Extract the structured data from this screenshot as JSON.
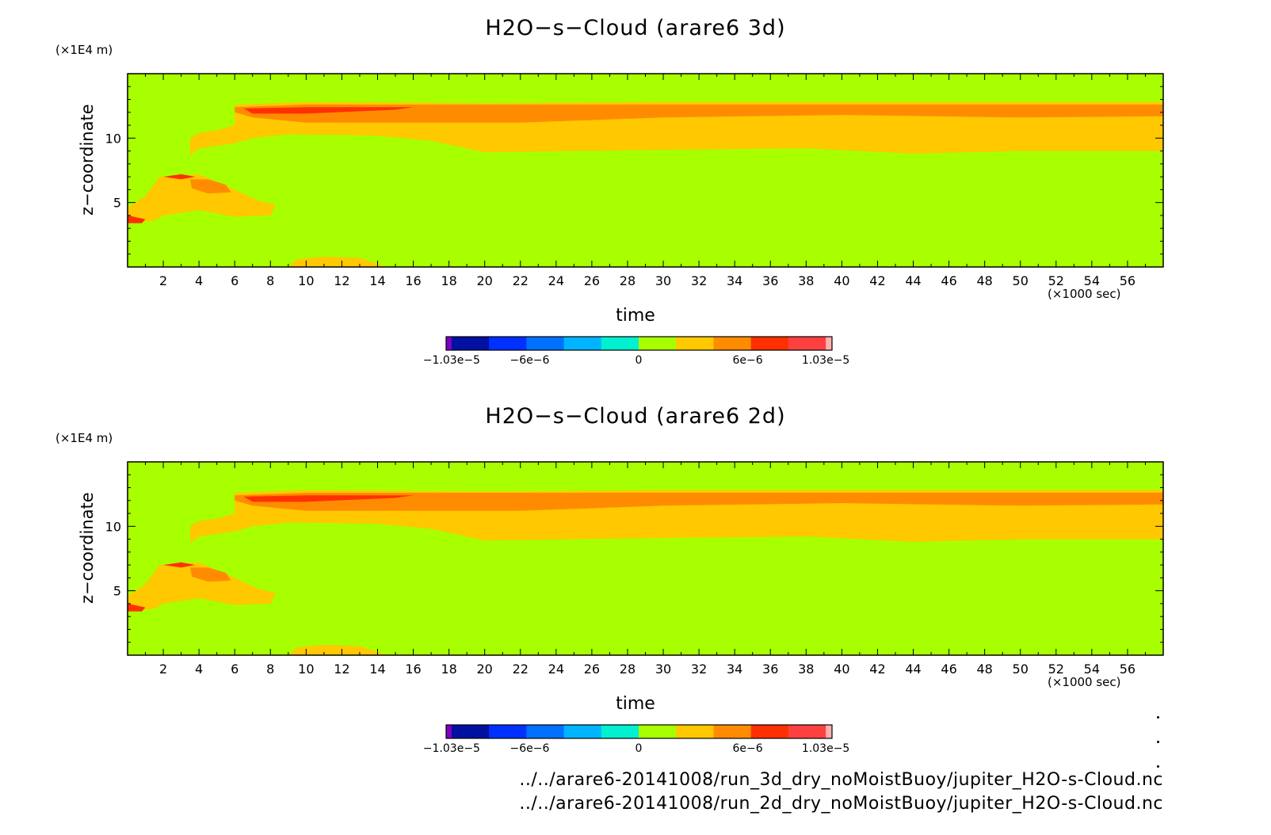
{
  "colors": {
    "background_level": "#a8ff00",
    "palette": [
      "#8000c0",
      "#0010a0",
      "#0030ff",
      "#0070ff",
      "#00b4ff",
      "#00f0d0",
      "#a8ff00",
      "#ffc800",
      "#ff8c00",
      "#ff3000",
      "#ff4040",
      "#ffb0b0"
    ]
  },
  "panels": [
    {
      "title": "H2O−s−Cloud (arare6 3d)",
      "xlabel": "time",
      "xunit": "(×1000 sec)",
      "ylabel": "z−coordinate",
      "yunit": "(×1E4 m)"
    },
    {
      "title": "H2O−s−Cloud (arare6 2d)",
      "xlabel": "time",
      "xunit": "(×1000 sec)",
      "ylabel": "z−coordinate",
      "yunit": "(×1E4 m)"
    }
  ],
  "footer": {
    "file_3d": "../../arare6-20141008/run_3d_dry_noMoistBuoy/jupiter_H2O-s-Cloud.nc",
    "file_2d": "../../arare6-20141008/run_2d_dry_noMoistBuoy/jupiter_H2O-s-Cloud.nc"
  },
  "chart_data": [
    {
      "type": "heatmap",
      "title": "H2O−s−Cloud (arare6 3d)",
      "xlabel": "time",
      "ylabel": "z−coordinate",
      "xlim": [
        0,
        58
      ],
      "ylim": [
        0,
        15
      ],
      "xticks": [
        2,
        4,
        6,
        8,
        10,
        12,
        14,
        16,
        18,
        20,
        22,
        24,
        26,
        28,
        30,
        32,
        34,
        36,
        38,
        40,
        42,
        44,
        46,
        48,
        50,
        52,
        54,
        56
      ],
      "yticks": [
        5,
        10
      ],
      "colorbar": {
        "tick_labels": [
          "−1.03e−5",
          "−6e−6",
          "0",
          "6e−6",
          "1.03e−5"
        ],
        "tick_values": [
          -1.03e-05,
          -6e-06,
          0,
          6e-06,
          1.03e-05
        ],
        "range": [
          -1.03e-05,
          1.03e-05
        ]
      },
      "regions": [
        {
          "level": "3.5e-6",
          "points": [
            [
              6,
              12.6
            ],
            [
              10,
              12.8
            ],
            [
              20,
              12.7
            ],
            [
              30,
              12.8
            ],
            [
              40,
              12.8
            ],
            [
              50,
              12.8
            ],
            [
              58,
              12.8
            ],
            [
              58,
              9
            ],
            [
              50,
              9
            ],
            [
              44,
              8.8
            ],
            [
              38,
              9.2
            ],
            [
              30,
              9.1
            ],
            [
              20,
              8.9
            ],
            [
              19,
              9.2
            ],
            [
              17,
              9.8
            ],
            [
              14,
              10.2
            ],
            [
              9,
              10.3
            ],
            [
              7,
              10
            ],
            [
              6,
              9.6
            ],
            [
              4,
              9.2
            ],
            [
              3.5,
              8.7
            ],
            [
              3.5,
              10
            ],
            [
              4,
              10.4
            ],
            [
              5,
              10.6
            ],
            [
              6,
              11
            ]
          ]
        },
        {
          "level": "5.5e-6",
          "points": [
            [
              6,
              12.4
            ],
            [
              10,
              12.6
            ],
            [
              20,
              12.6
            ],
            [
              30,
              12.6
            ],
            [
              40,
              12.6
            ],
            [
              50,
              12.6
            ],
            [
              58,
              12.6
            ],
            [
              58,
              11.7
            ],
            [
              50,
              11.6
            ],
            [
              40,
              11.8
            ],
            [
              30,
              11.6
            ],
            [
              22,
              11.2
            ],
            [
              16,
              11.2
            ],
            [
              10,
              11.2
            ],
            [
              7,
              11.6
            ],
            [
              6,
              12
            ]
          ]
        },
        {
          "level": "8.5e-6",
          "points": [
            [
              6.5,
              12.3
            ],
            [
              10,
              12.4
            ],
            [
              16,
              12.4
            ],
            [
              15,
              12.2
            ],
            [
              10,
              11.9
            ],
            [
              7,
              11.9
            ]
          ]
        },
        {
          "level": "3.5e-6",
          "points": [
            [
              0,
              4.6
            ],
            [
              1,
              5.5
            ],
            [
              1.8,
              7
            ],
            [
              4,
              7.2
            ],
            [
              6,
              6
            ],
            [
              7.2,
              5.2
            ],
            [
              8.3,
              4.8
            ],
            [
              8,
              4
            ],
            [
              6,
              3.9
            ],
            [
              4,
              4.4
            ],
            [
              2,
              4
            ],
            [
              1.5,
              3.6
            ],
            [
              0,
              3.4
            ]
          ]
        },
        {
          "level": "5.5e-6",
          "points": [
            [
              3.5,
              6.8
            ],
            [
              4.5,
              6.8
            ],
            [
              5.5,
              6.4
            ],
            [
              5.8,
              5.8
            ],
            [
              4.5,
              5.7
            ],
            [
              3.6,
              6.1
            ]
          ]
        },
        {
          "level": "8.5e-6",
          "points": [
            [
              2,
              7
            ],
            [
              3,
              7.2
            ],
            [
              3.8,
              7
            ],
            [
              3,
              6.8
            ]
          ]
        },
        {
          "level": "8.5e-6",
          "points": [
            [
              0,
              4
            ],
            [
              1,
              3.7
            ],
            [
              0.8,
              3.4
            ],
            [
              0,
              3.4
            ]
          ]
        },
        {
          "level": "3.5e-6",
          "points": [
            [
              9,
              0
            ],
            [
              9.5,
              0.6
            ],
            [
              11,
              0.8
            ],
            [
              13,
              0.7
            ],
            [
              14.5,
              0
            ]
          ]
        }
      ]
    },
    {
      "type": "heatmap",
      "title": "H2O−s−Cloud (arare6 2d)",
      "xlabel": "time",
      "ylabel": "z−coordinate",
      "xlim": [
        0,
        58
      ],
      "ylim": [
        0,
        15
      ],
      "xticks": [
        2,
        4,
        6,
        8,
        10,
        12,
        14,
        16,
        18,
        20,
        22,
        24,
        26,
        28,
        30,
        32,
        34,
        36,
        38,
        40,
        42,
        44,
        46,
        48,
        50,
        52,
        54,
        56
      ],
      "yticks": [
        5,
        10
      ],
      "colorbar": {
        "tick_labels": [
          "−1.03e−5",
          "−6e−6",
          "0",
          "6e−6",
          "1.03e−5"
        ],
        "tick_values": [
          -1.03e-05,
          -6e-06,
          0,
          6e-06,
          1.03e-05
        ],
        "range": [
          -1.03e-05,
          1.03e-05
        ]
      },
      "regions": [
        {
          "level": "3.5e-6",
          "points": [
            [
              6,
              12.6
            ],
            [
              10,
              12.8
            ],
            [
              20,
              12.7
            ],
            [
              30,
              12.8
            ],
            [
              40,
              12.8
            ],
            [
              50,
              12.8
            ],
            [
              58,
              12.8
            ],
            [
              58,
              9
            ],
            [
              50,
              9
            ],
            [
              44,
              8.8
            ],
            [
              38,
              9.2
            ],
            [
              30,
              9.1
            ],
            [
              20,
              8.9
            ],
            [
              19,
              9.2
            ],
            [
              17,
              9.8
            ],
            [
              14,
              10.2
            ],
            [
              9,
              10.3
            ],
            [
              7,
              10
            ],
            [
              6,
              9.6
            ],
            [
              4,
              9.2
            ],
            [
              3.5,
              8.7
            ],
            [
              3.5,
              10
            ],
            [
              4,
              10.4
            ],
            [
              5,
              10.6
            ],
            [
              6,
              11
            ]
          ]
        },
        {
          "level": "5.5e-6",
          "points": [
            [
              6,
              12.4
            ],
            [
              10,
              12.6
            ],
            [
              20,
              12.6
            ],
            [
              30,
              12.6
            ],
            [
              40,
              12.6
            ],
            [
              50,
              12.6
            ],
            [
              58,
              12.6
            ],
            [
              58,
              11.7
            ],
            [
              50,
              11.6
            ],
            [
              40,
              11.8
            ],
            [
              30,
              11.6
            ],
            [
              22,
              11.2
            ],
            [
              16,
              11.2
            ],
            [
              10,
              11.2
            ],
            [
              7,
              11.6
            ],
            [
              6,
              12
            ]
          ]
        },
        {
          "level": "8.5e-6",
          "points": [
            [
              6.5,
              12.3
            ],
            [
              10,
              12.4
            ],
            [
              16,
              12.4
            ],
            [
              15,
              12.2
            ],
            [
              10,
              11.9
            ],
            [
              7,
              11.9
            ]
          ]
        },
        {
          "level": "3.5e-6",
          "points": [
            [
              0,
              4.6
            ],
            [
              1,
              5.5
            ],
            [
              1.8,
              7
            ],
            [
              4,
              7.2
            ],
            [
              6,
              6
            ],
            [
              7.2,
              5.2
            ],
            [
              8.3,
              4.8
            ],
            [
              8,
              4
            ],
            [
              6,
              3.9
            ],
            [
              4,
              4.4
            ],
            [
              2,
              4
            ],
            [
              1.5,
              3.6
            ],
            [
              0,
              3.4
            ]
          ]
        },
        {
          "level": "5.5e-6",
          "points": [
            [
              3.5,
              6.8
            ],
            [
              4.5,
              6.8
            ],
            [
              5.5,
              6.4
            ],
            [
              5.8,
              5.8
            ],
            [
              4.5,
              5.7
            ],
            [
              3.6,
              6.1
            ]
          ]
        },
        {
          "level": "8.5e-6",
          "points": [
            [
              2,
              7
            ],
            [
              3,
              7.2
            ],
            [
              3.8,
              7
            ],
            [
              3,
              6.8
            ]
          ]
        },
        {
          "level": "8.5e-6",
          "points": [
            [
              0,
              4
            ],
            [
              1,
              3.7
            ],
            [
              0.8,
              3.4
            ],
            [
              0,
              3.4
            ]
          ]
        },
        {
          "level": "3.5e-6",
          "points": [
            [
              9,
              0
            ],
            [
              9.5,
              0.6
            ],
            [
              11,
              0.8
            ],
            [
              13,
              0.7
            ],
            [
              14.5,
              0
            ]
          ]
        }
      ]
    }
  ]
}
